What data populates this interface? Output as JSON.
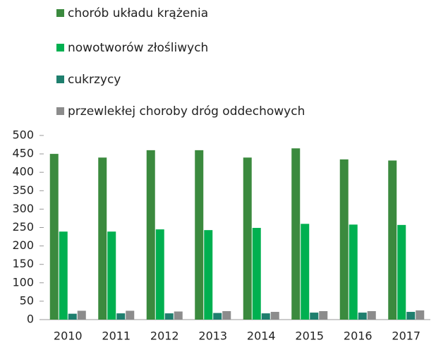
{
  "chart_data": {
    "type": "bar",
    "categories": [
      "2010",
      "2011",
      "2012",
      "2013",
      "2014",
      "2015",
      "2016",
      "2017"
    ],
    "series": [
      {
        "name": "chorób układu krążenia",
        "color": "#3b8a3e",
        "values": [
          450,
          440,
          460,
          460,
          440,
          465,
          435,
          432
        ]
      },
      {
        "name": "nowotworów złośliwych",
        "color": "#00b050",
        "values": [
          239,
          239,
          245,
          243,
          249,
          260,
          258,
          257
        ]
      },
      {
        "name": "cukrzycy",
        "color": "#1f7f6e",
        "values": [
          16,
          17,
          17,
          18,
          17,
          19,
          19,
          21
        ]
      },
      {
        "name": "przewlekłej choroby dróg oddechowych",
        "color": "#8c8c8c",
        "values": [
          24,
          24,
          22,
          23,
          21,
          23,
          23,
          25
        ]
      }
    ],
    "ylim": [
      0,
      500
    ],
    "yticks": [
      0,
      50,
      100,
      150,
      200,
      250,
      300,
      350,
      400,
      450,
      500
    ],
    "legend": "top"
  }
}
